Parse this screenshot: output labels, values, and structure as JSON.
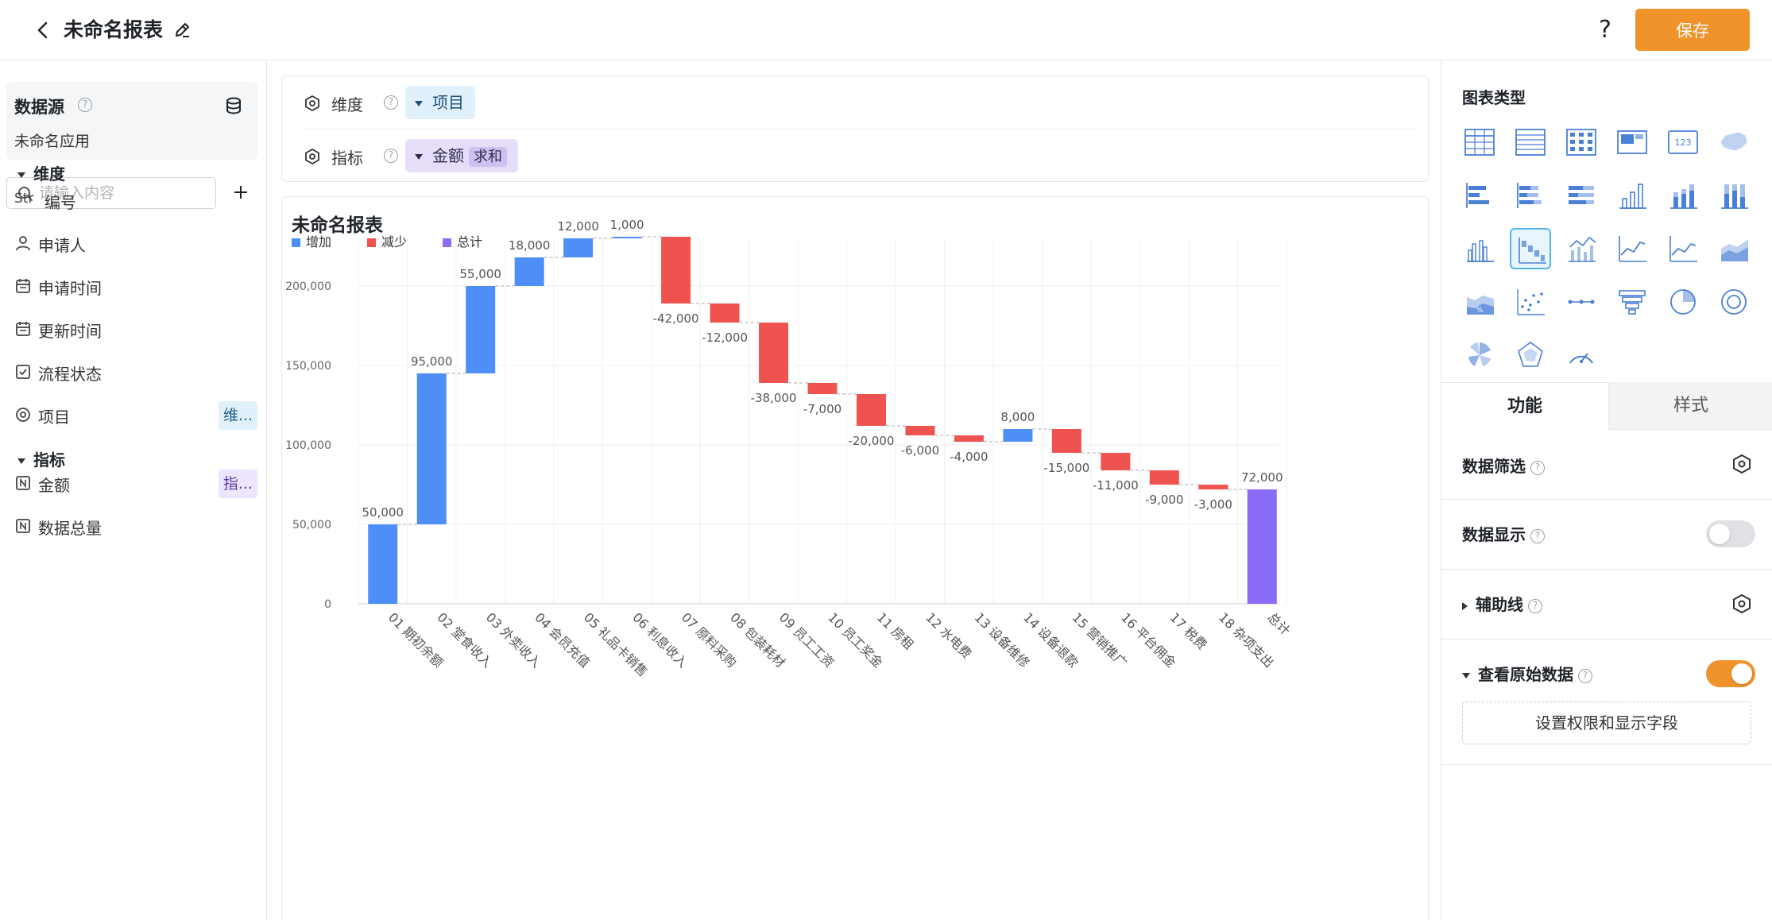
{
  "header": {
    "title": "未命名报表",
    "help_label": "?",
    "save_label": "保存"
  },
  "left": {
    "datasource_title": "数据源",
    "app_name": "未命名应用",
    "search_placeholder": "请输入内容",
    "dimension_group": "维度",
    "metric_group": "指标",
    "dimensions": [
      {
        "label": "编号",
        "prefix": "Str",
        "icon": "string-icon"
      },
      {
        "label": "申请人",
        "icon": "user-icon"
      },
      {
        "label": "申请时间",
        "icon": "calendar-icon"
      },
      {
        "label": "更新时间",
        "icon": "calendar-icon"
      },
      {
        "label": "流程状态",
        "icon": "checkbox-icon"
      },
      {
        "label": "项目",
        "icon": "dimension-icon",
        "tag": "维..."
      }
    ],
    "metrics": [
      {
        "label": "金额",
        "icon": "number-icon",
        "tag": "指..."
      },
      {
        "label": "数据总量",
        "icon": "number-icon"
      }
    ]
  },
  "config": {
    "dimension_label": "维度",
    "dimension_chip": "项目",
    "metric_label": "指标",
    "metric_chip": "金额",
    "metric_agg": "求和"
  },
  "chart_title": "未命名报表",
  "chart_data": {
    "type": "waterfall",
    "legend": [
      "增加",
      "减少",
      "总计"
    ],
    "colors": {
      "increase": "#4e8ef7",
      "decrease": "#ef5350",
      "total": "#8b6cf6"
    },
    "categories": [
      "01 期初余额",
      "02 堂食收入",
      "03 外卖收入",
      "04 会员充值",
      "05 礼品卡销售",
      "06 利息收入",
      "07 原料采购",
      "08 包装耗材",
      "09 员工工资",
      "10 员工奖金",
      "11 房租",
      "12 水电费",
      "13 设备维修",
      "14 设备退款",
      "15 营销推广",
      "16 平台佣金",
      "17 税费",
      "18 杂项支出",
      "总计"
    ],
    "values": [
      50000,
      95000,
      55000,
      18000,
      12000,
      1000,
      -42000,
      -12000,
      -38000,
      -7000,
      -20000,
      -6000,
      -4000,
      8000,
      -15000,
      -11000,
      -9000,
      -3000,
      72000
    ],
    "labels": [
      "50,000",
      "95,000",
      "55,000",
      "18,000",
      "12,000",
      "1,000",
      "-42,000",
      "-12,000",
      "-38,000",
      "-7,000",
      "-20,000",
      "-6,000",
      "-4,000",
      "8,000",
      "-15,000",
      "-11,000",
      "-9,000",
      "-3,000",
      "72,000"
    ],
    "y_ticks": [
      "0",
      "50,000",
      "100,000",
      "150,000",
      "200,000"
    ],
    "ylim": [
      0,
      230000
    ],
    "grid": true,
    "legend_position": "top-left"
  },
  "right": {
    "chart_type_title": "图表类型",
    "chart_types": [
      "table-icon",
      "detail-table-icon",
      "pivot-table-icon",
      "kpi-card-icon",
      "number-card-icon",
      "map-icon",
      "bar-h-icon",
      "stacked-bar-h-icon",
      "percent-bar-h-icon",
      "column-icon",
      "stacked-column-icon",
      "percent-column-icon",
      "grouped-column-icon",
      "waterfall-icon",
      "combo-icon",
      "line-icon",
      "area-icon",
      "stacked-area-icon",
      "percent-area-icon",
      "scatter-icon",
      "dot-line-icon",
      "funnel-icon",
      "pie-icon",
      "donut-icon",
      "rose-icon",
      "radar-icon",
      "gauge-icon"
    ],
    "active_chart_type": "waterfall-icon",
    "tab_function": "功能",
    "tab_style": "样式",
    "data_filter": "数据筛选",
    "data_display": "数据显示",
    "aux_line": "辅助线",
    "view_raw": "查看原始数据",
    "perm_button": "设置权限和显示字段"
  }
}
